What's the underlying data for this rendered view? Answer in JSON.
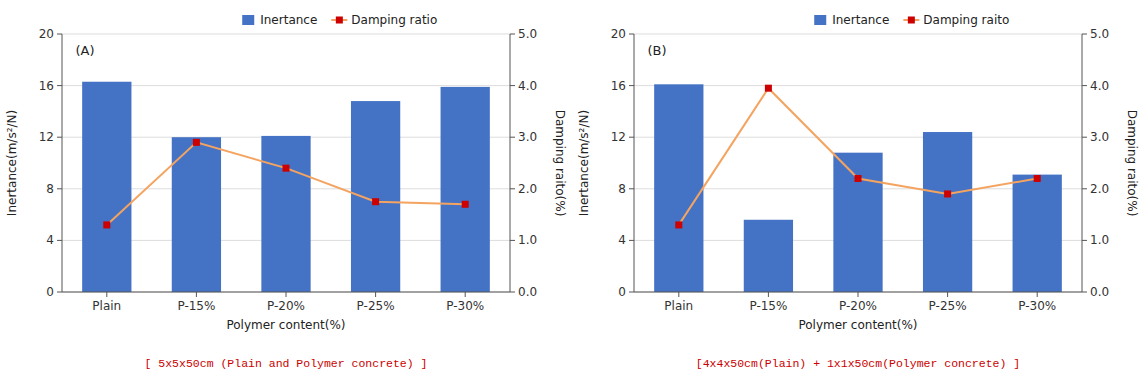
{
  "chart_data": [
    {
      "type": "bar",
      "categories": [
        "Plain",
        "P-15%",
        "P-20%",
        "P-25%",
        "P-30%"
      ],
      "xlabel": "Polymer content(%)",
      "ylabel": "Inertance(m/s²/N)",
      "y2label": "Damping raito(%)",
      "ylim": [
        0,
        20
      ],
      "yticks": [
        0,
        4,
        8,
        12,
        16,
        20
      ],
      "y2lim": [
        0.0,
        5.0
      ],
      "y2ticks": [
        {
          "value": 0.0,
          "label": "0.0"
        },
        {
          "value": 1.0,
          "label": "1.0"
        },
        {
          "value": 2.0,
          "label": "2.0"
        },
        {
          "value": 3.0,
          "label": "3.0"
        },
        {
          "value": 4.0,
          "label": "4.0"
        },
        {
          "value": 5.0,
          "label": "5.0"
        }
      ],
      "grid": true,
      "legend": "top",
      "annotations": [
        {
          "text": "(A)"
        },
        {
          "text": "[ 5x5x50cm (Plain and Polymer concrete) ]",
          "color": "#CC0000"
        }
      ],
      "series": [
        {
          "name": "Inertance",
          "type": "bar",
          "color": "#4472C4",
          "values": [
            16.3,
            12.0,
            12.1,
            14.8,
            15.9
          ]
        },
        {
          "name": "Damping ratio",
          "type": "line",
          "axis": "y2",
          "color": "#F4A460",
          "marker": "square",
          "colors": [
            "#CC0000",
            "#CC0000",
            "#CC0000",
            "#CC0000",
            "#CC0000"
          ],
          "values": [
            1.3,
            2.9,
            2.4,
            1.75,
            1.7
          ]
        }
      ]
    },
    {
      "type": "bar",
      "categories": [
        "Plain",
        "P-15%",
        "P-20%",
        "P-25%",
        "P-30%"
      ],
      "xlabel": "Polymer content(%)",
      "ylabel": "Inertance(m/s²/N)",
      "y2label": "Damping raito(%)",
      "ylim": [
        0,
        20
      ],
      "yticks": [
        0,
        4,
        8,
        12,
        16,
        20
      ],
      "y2lim": [
        0.0,
        5.0
      ],
      "y2ticks": [
        {
          "value": 0.0,
          "label": "0.0"
        },
        {
          "value": 1.0,
          "label": "1.0"
        },
        {
          "value": 2.0,
          "label": "2.0"
        },
        {
          "value": 3.0,
          "label": "3.0"
        },
        {
          "value": 4.0,
          "label": "4.0"
        },
        {
          "value": 5.0,
          "label": "5.0"
        }
      ],
      "grid": true,
      "legend": "top",
      "annotations": [
        {
          "text": "(B)"
        },
        {
          "text": "[4x4x50cm(Plain) + 1x1x50cm(Polymer concrete) ]",
          "color": "#CC0000"
        }
      ],
      "series": [
        {
          "name": "Inertance",
          "type": "bar",
          "color": "#4472C4",
          "values": [
            16.1,
            5.6,
            10.8,
            12.4,
            9.1
          ]
        },
        {
          "name": "Damping raito",
          "type": "line",
          "axis": "y2",
          "color": "#F4A460",
          "marker": "square",
          "colors": [
            "#CC0000",
            "#CC0000",
            "#CC0000",
            "#CC0000",
            "#CC0000"
          ],
          "values": [
            1.3,
            3.95,
            2.2,
            1.9,
            2.2
          ]
        }
      ]
    }
  ]
}
